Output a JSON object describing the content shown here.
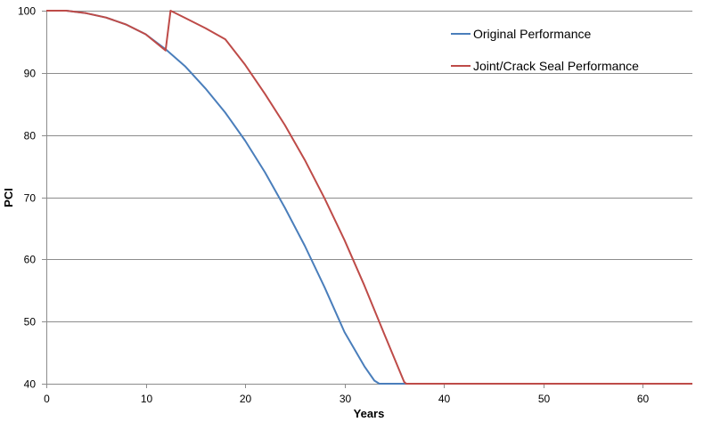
{
  "chart_data": {
    "type": "line",
    "xlabel": "Years",
    "ylabel": "PCI",
    "xlim": [
      0,
      65
    ],
    "ylim": [
      40,
      100
    ],
    "x_ticks": [
      0,
      10,
      20,
      30,
      40,
      50,
      60
    ],
    "x_tick_labels": [
      "0",
      "10",
      "20",
      "30",
      "40",
      "50",
      "60"
    ],
    "y_ticks": [
      40,
      50,
      60,
      70,
      80,
      90,
      100
    ],
    "y_tick_labels": [
      "40",
      "50",
      "60",
      "70",
      "80",
      "90",
      "100"
    ],
    "grid": "horizontal",
    "legend_position": "top-right",
    "series": [
      {
        "name": "Original Performance",
        "color": "#4a7ebb",
        "x": [
          0,
          2,
          4,
          6,
          8,
          10,
          12,
          14,
          16,
          18,
          20,
          22,
          24,
          26,
          28,
          30,
          32,
          33,
          33.5,
          35,
          40,
          50,
          65
        ],
        "y": [
          100,
          100,
          99.6,
          98.9,
          97.8,
          96.2,
          93.8,
          91,
          87.5,
          83.6,
          79.1,
          74,
          68.3,
          62.2,
          55.5,
          48.3,
          42.8,
          40.5,
          40,
          40,
          40,
          40,
          40
        ]
      },
      {
        "name": "Joint/Crack Seal Performance",
        "color": "#be4b48",
        "x": [
          0,
          2,
          4,
          6,
          8,
          10,
          12,
          12.5,
          14,
          16,
          18,
          20,
          22,
          24,
          26,
          28,
          30,
          32,
          34,
          36,
          36.2,
          40,
          50,
          65
        ],
        "y": [
          100,
          100,
          99.6,
          98.9,
          97.8,
          96.2,
          93.6,
          100,
          98.8,
          97.2,
          95.4,
          91.3,
          86.6,
          81.6,
          76,
          69.8,
          63.1,
          55.8,
          48,
          40.3,
          40,
          40,
          40,
          40
        ]
      }
    ]
  }
}
